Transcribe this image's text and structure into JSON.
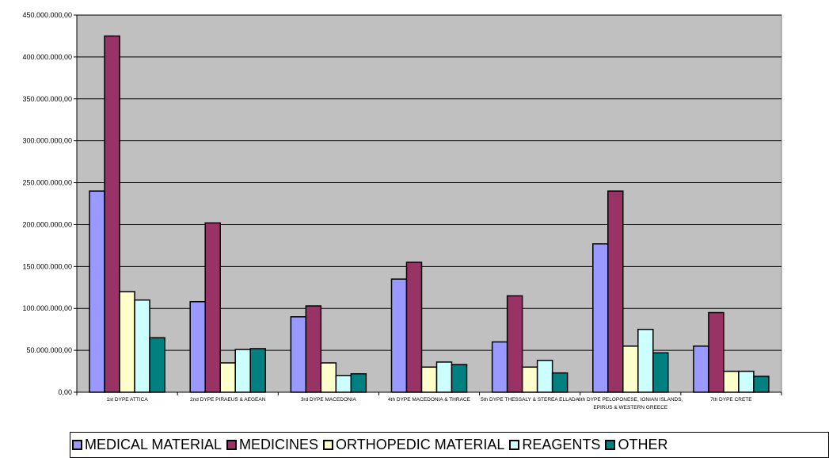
{
  "chart_data": {
    "type": "bar",
    "categories": [
      "1st DYPE ATTICA",
      "2nd DYPE PIRAEUS & AEGEAN",
      "3rd DYPE MACEDONIA",
      "4th DYPE MACEDONIA & THRACE",
      "5th DYPE THESSALY & STEREA ELLADA",
      "6th DYPE PELOPONESE, IONIAN ISLANDS, EPIRUS & WESTERN GREECE",
      "7th DYPE CRETE"
    ],
    "series": [
      {
        "name": "MEDICAL MATERIAL",
        "color": "#9999ff",
        "values": [
          240000000,
          108000000,
          90000000,
          135000000,
          60000000,
          177000000,
          55000000
        ]
      },
      {
        "name": "MEDICINES",
        "color": "#993366",
        "values": [
          425000000,
          202000000,
          103000000,
          155000000,
          115000000,
          240000000,
          95000000
        ]
      },
      {
        "name": "ORTHOPEDIC MATERIAL",
        "color": "#ffffcc",
        "values": [
          120000000,
          35000000,
          35000000,
          30000000,
          30000000,
          55000000,
          25000000
        ]
      },
      {
        "name": "REAGENTS",
        "color": "#ccffff",
        "values": [
          110000000,
          51000000,
          20000000,
          36000000,
          38000000,
          75000000,
          25000000
        ]
      },
      {
        "name": "OTHER",
        "color": "#008080",
        "values": [
          65000000,
          52000000,
          22000000,
          33000000,
          23000000,
          47000000,
          19000000
        ]
      }
    ],
    "ylim": [
      0,
      450000000
    ],
    "yticks": [
      {
        "value": 0,
        "label": "0,00"
      },
      {
        "value": 50000000,
        "label": "50.000.000,00"
      },
      {
        "value": 100000000,
        "label": "100.000.000,00"
      },
      {
        "value": 150000000,
        "label": "150.000.000,00"
      },
      {
        "value": 200000000,
        "label": "200.000.000,00"
      },
      {
        "value": 250000000,
        "label": "250.000.000,00"
      },
      {
        "value": 300000000,
        "label": "300.000.000,00"
      },
      {
        "value": 350000000,
        "label": "350.000.000,00"
      },
      {
        "value": 400000000,
        "label": "400.000.000,00"
      },
      {
        "value": 450000000,
        "label": "450.000.000,00"
      }
    ],
    "plot_background": "#c0c0c0",
    "grid": true,
    "legend_position": "bottom"
  }
}
